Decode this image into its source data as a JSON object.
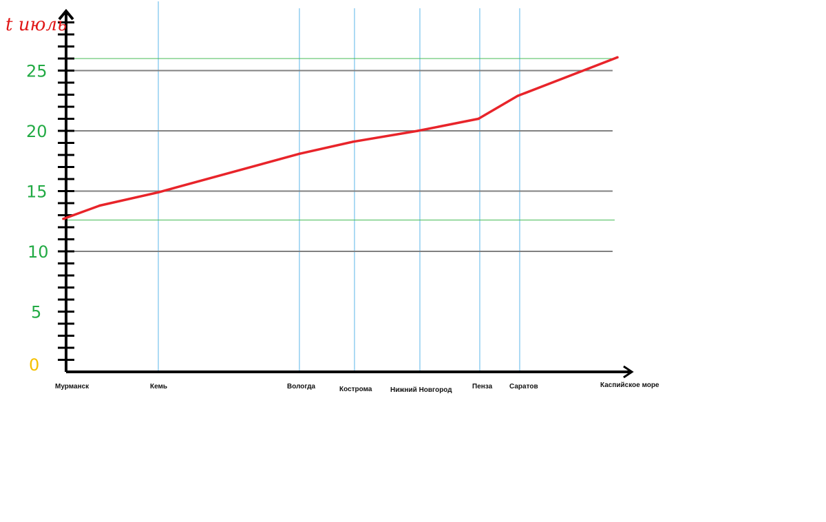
{
  "chart_data": {
    "type": "line",
    "title": "",
    "ylabel": "t июль",
    "xlabel": "",
    "ylim": [
      0,
      27
    ],
    "y_tick_labels": [
      "0",
      "5",
      "10",
      "15",
      "20",
      "25"
    ],
    "y_minor_tick_step": 1,
    "grid": "horizontal lines at 10, 15, 20, 25; vertical lines at each city",
    "reference_lines": [
      12.6,
      26
    ],
    "categories": [
      "Мурманск",
      "Кемь",
      "Вологда",
      "Кострома",
      "Нижний Новгород",
      "Пенза",
      "Саратов",
      "Каспийское море"
    ],
    "series": [
      {
        "points": [
          {
            "label": "Мурманск",
            "value": 12.7
          },
          {
            "label": "",
            "value": 13.8
          },
          {
            "label": "Кемь",
            "value": 14.9
          },
          {
            "label": "Вологда",
            "value": 18.1
          },
          {
            "label": "Кострома",
            "value": 19.1
          },
          {
            "label": "Нижний Новгород",
            "value": 20.0
          },
          {
            "label": "Пенза",
            "value": 21.0
          },
          {
            "label": "Саратов",
            "value": 22.9
          },
          {
            "label": "Каспийское море",
            "value": 26.1
          }
        ]
      }
    ],
    "colors": {
      "line": "#e8242a",
      "axis": "#000000",
      "grid": "#808080",
      "reference": "#44bb55",
      "vertical": "#5ab4e8",
      "ytick_labels": "#22aa44",
      "zero_label": "#f5c000",
      "ylabel": "#e01818"
    }
  }
}
